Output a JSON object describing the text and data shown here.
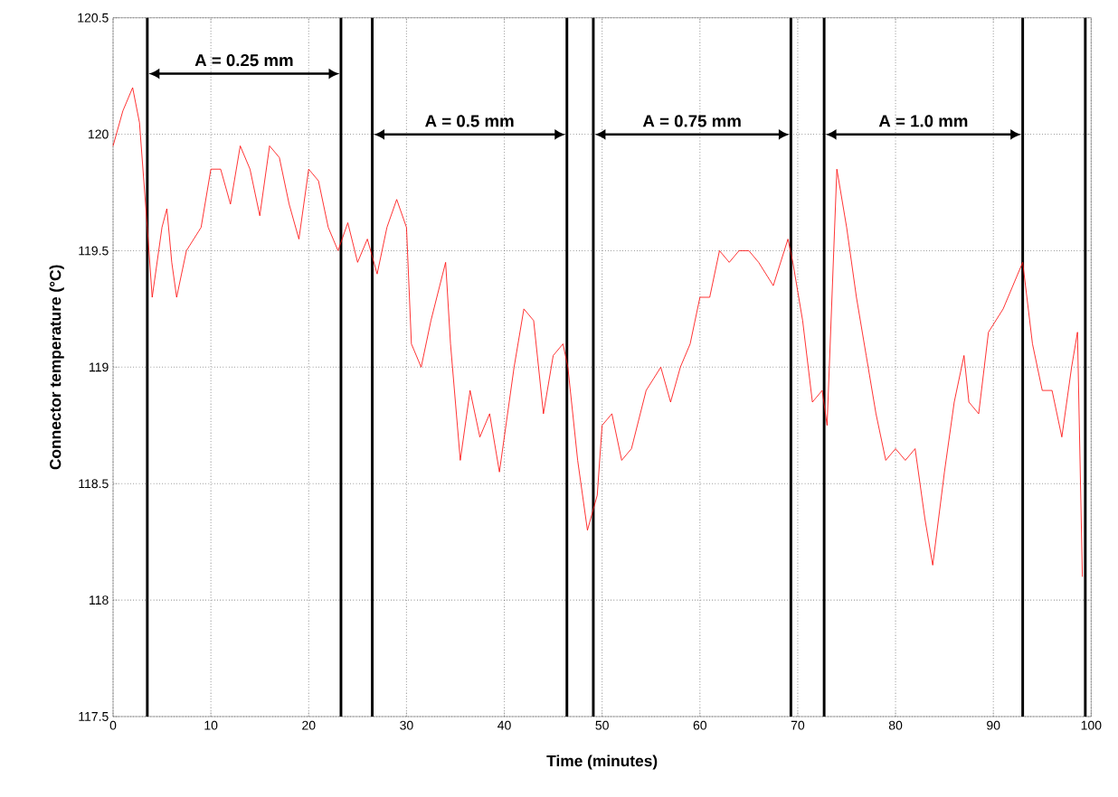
{
  "chart_data": {
    "type": "line",
    "xlabel": "Time (minutes)",
    "ylabel": "Connector temperature (°C)",
    "xlim": [
      0,
      100
    ],
    "ylim": [
      117.5,
      120.5
    ],
    "xticks": [
      0,
      10,
      20,
      30,
      40,
      50,
      60,
      70,
      80,
      90,
      100
    ],
    "yticks": [
      117.5,
      118,
      118.5,
      119,
      119.5,
      120,
      120.5
    ],
    "grid": true,
    "line_style": "solid",
    "marker": "none",
    "series": [
      {
        "color": "#ff0000",
        "x": [
          0,
          1,
          2,
          2.7,
          3.5,
          4,
          5,
          5.5,
          6,
          6.5,
          7.5,
          9,
          10,
          11,
          12,
          13,
          14,
          15,
          16,
          17,
          18,
          19,
          20,
          21,
          22,
          23,
          24,
          25,
          26,
          27,
          28,
          29,
          30,
          30.5,
          31.5,
          32.5,
          34,
          34.5,
          35,
          35.5,
          36.5,
          37.5,
          38.5,
          39.5,
          41,
          42,
          43,
          44,
          45,
          46,
          46.5,
          47.5,
          48.5,
          49.5,
          50,
          51,
          52,
          53,
          54.5,
          56,
          57,
          58,
          59,
          60,
          61,
          62,
          63,
          64,
          65,
          66,
          67.5,
          69,
          69.5,
          70.5,
          71.5,
          72.5,
          73,
          74,
          75,
          76,
          77,
          78,
          79,
          80,
          81,
          82,
          83,
          83.8,
          85,
          86,
          87,
          87.5,
          88.5,
          89.5,
          91,
          93,
          94,
          95,
          96,
          97,
          98,
          98.6,
          99.1
        ],
        "values": [
          119.95,
          120.1,
          120.2,
          120.05,
          119.6,
          119.3,
          119.6,
          119.68,
          119.45,
          119.3,
          119.5,
          119.6,
          119.85,
          119.85,
          119.7,
          119.95,
          119.85,
          119.65,
          119.95,
          119.9,
          119.7,
          119.55,
          119.85,
          119.8,
          119.6,
          119.5,
          119.62,
          119.45,
          119.55,
          119.4,
          119.6,
          119.72,
          119.6,
          119.1,
          119.0,
          119.2,
          119.45,
          119.1,
          118.85,
          118.6,
          118.9,
          118.7,
          118.8,
          118.55,
          119.0,
          119.25,
          119.2,
          118.8,
          119.05,
          119.1,
          119.0,
          118.6,
          118.3,
          118.45,
          118.75,
          118.8,
          118.6,
          118.65,
          118.9,
          119.0,
          118.85,
          119.0,
          119.1,
          119.3,
          119.3,
          119.5,
          119.45,
          119.5,
          119.5,
          119.45,
          119.35,
          119.55,
          119.45,
          119.2,
          118.85,
          118.9,
          118.75,
          119.85,
          119.6,
          119.3,
          119.05,
          118.8,
          118.6,
          118.65,
          118.6,
          118.65,
          118.35,
          118.15,
          118.55,
          118.85,
          119.05,
          118.85,
          118.8,
          119.15,
          119.25,
          119.45,
          119.1,
          118.9,
          118.9,
          118.7,
          119.0,
          119.15,
          118.1
        ]
      }
    ],
    "ref_lines": [
      {
        "axis": "x",
        "value": 3.5,
        "color": "#000000"
      },
      {
        "axis": "x",
        "value": 23.3,
        "color": "#000000"
      },
      {
        "axis": "x",
        "value": 26.5,
        "color": "#000000"
      },
      {
        "axis": "x",
        "value": 46.4,
        "color": "#000000"
      },
      {
        "axis": "x",
        "value": 49.1,
        "color": "#000000"
      },
      {
        "axis": "x",
        "value": 69.3,
        "color": "#000000"
      },
      {
        "axis": "x",
        "value": 72.7,
        "color": "#000000"
      },
      {
        "axis": "x",
        "value": 93.0,
        "color": "#000000"
      },
      {
        "axis": "x",
        "value": 99.4,
        "color": "#000000"
      }
    ],
    "annotations": [
      "A = 0.25 mm",
      "A = 0.5 mm",
      "A = 0.75 mm",
      "A = 1.0 mm"
    ]
  }
}
